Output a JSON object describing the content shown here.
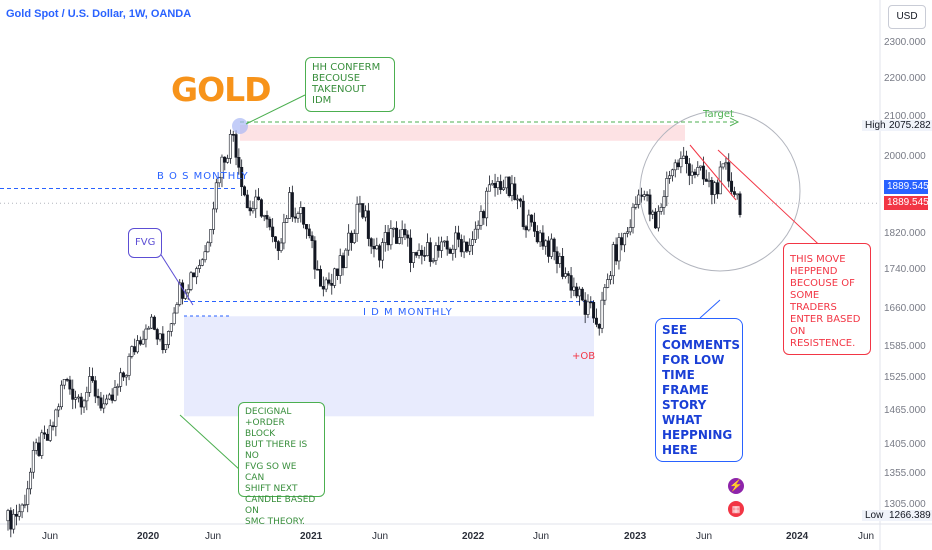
{
  "header": {
    "symbol_line": "Gold Spot / U.S. Dollar, 1W, OANDA"
  },
  "currency_button": "USD",
  "chart_title": "GOLD",
  "annotations": {
    "hh_conferm": "HH CONFERM\nBECOUSE\nTAKENOUT IDM",
    "fvg": "FVG",
    "bos_monthly": "B O S MONTHLY",
    "idm_monthly": "I D M MONTHLY",
    "target": "Target",
    "ob": "+OB",
    "decignal": "DECIGNAL +ORDER\nBLOCK\nBUT THERE IS NO\nFVG SO WE CAN\nSHIFT NEXT\nCANDLE BASED ON\nSMC THEORY.",
    "see_comments": "SEE\nCOMMENTS\nFOR LOW\nTIME FRAME\nSTORY\nWHAT\nHEPPNING\nHERE",
    "this_move": "THIS MOVE\nHEPPEND\nBECOUSE OF\nSOME TRADERS\nENTER BASED\nON\nRESISTENCE."
  },
  "price_axis": {
    "ticks": [
      "2300.000",
      "2200.000",
      "2100.000",
      "2000.000",
      "1820.000",
      "1740.000",
      "1660.000",
      "1585.000",
      "1525.000",
      "1465.000",
      "1405.000",
      "1355.000",
      "1305.000"
    ],
    "high_label": "High",
    "high_value": "2075.282",
    "low_label": "Low",
    "low_value": "1266.389",
    "last_price_blue": "1889.545",
    "last_price_red": "1889.545"
  },
  "date_axis": [
    {
      "label": "Jun",
      "year": false
    },
    {
      "label": "2020",
      "year": true
    },
    {
      "label": "Jun",
      "year": false
    },
    {
      "label": "2021",
      "year": true
    },
    {
      "label": "Jun",
      "year": false
    },
    {
      "label": "2022",
      "year": true
    },
    {
      "label": "Jun",
      "year": false
    },
    {
      "label": "2023",
      "year": true
    },
    {
      "label": "Jun",
      "year": false
    },
    {
      "label": "2024",
      "year": true
    },
    {
      "label": "Jun",
      "year": false
    }
  ],
  "icons": {
    "lightning": "lightning-icon",
    "flag": "us-flag-icon"
  },
  "colors": {
    "up": "#089981",
    "down": "#f23645",
    "candle": "#131722",
    "accent": "#2962ff",
    "gold": "#f7931a"
  },
  "chart_data": {
    "type": "candlestick",
    "title": "Gold Spot / U.S. Dollar, 1W, OANDA",
    "x_range": [
      "2019-04",
      "2024-06"
    ],
    "y_range": [
      1250,
      2350
    ],
    "ylabel": "USD",
    "high": 2075.282,
    "low": 1266.389,
    "last": 1889.545,
    "levels": {
      "bos_monthly": 1924,
      "idm_monthly": 1675,
      "target": 2080,
      "order_block_top": 1645,
      "order_block_bottom": 1455
    },
    "weekly_closes": [
      {
        "date": "2019-04",
        "close": 1280
      },
      {
        "date": "2019-05",
        "close": 1300
      },
      {
        "date": "2019-06",
        "close": 1395
      },
      {
        "date": "2019-07",
        "close": 1420
      },
      {
        "date": "2019-08",
        "close": 1520
      },
      {
        "date": "2019-09",
        "close": 1490
      },
      {
        "date": "2019-10",
        "close": 1510
      },
      {
        "date": "2019-11",
        "close": 1465
      },
      {
        "date": "2019-12",
        "close": 1515
      },
      {
        "date": "2020-01",
        "close": 1585
      },
      {
        "date": "2020-02",
        "close": 1640
      },
      {
        "date": "2020-03",
        "close": 1580
      },
      {
        "date": "2020-04",
        "close": 1690
      },
      {
        "date": "2020-05",
        "close": 1730
      },
      {
        "date": "2020-06",
        "close": 1780
      },
      {
        "date": "2020-07",
        "close": 1970
      },
      {
        "date": "2020-08",
        "close": 2060
      },
      {
        "date": "2020-09",
        "close": 1880
      },
      {
        "date": "2020-10",
        "close": 1880
      },
      {
        "date": "2020-11",
        "close": 1780
      },
      {
        "date": "2020-12",
        "close": 1890
      },
      {
        "date": "2021-01",
        "close": 1850
      },
      {
        "date": "2021-02",
        "close": 1735
      },
      {
        "date": "2021-03",
        "close": 1710
      },
      {
        "date": "2021-04",
        "close": 1770
      },
      {
        "date": "2021-05",
        "close": 1900
      },
      {
        "date": "2021-06",
        "close": 1770
      },
      {
        "date": "2021-07",
        "close": 1815
      },
      {
        "date": "2021-08",
        "close": 1815
      },
      {
        "date": "2021-09",
        "close": 1755
      },
      {
        "date": "2021-10",
        "close": 1785
      },
      {
        "date": "2021-11",
        "close": 1780
      },
      {
        "date": "2021-12",
        "close": 1805
      },
      {
        "date": "2022-01",
        "close": 1795
      },
      {
        "date": "2022-02",
        "close": 1905
      },
      {
        "date": "2022-03",
        "close": 1940
      },
      {
        "date": "2022-04",
        "close": 1900
      },
      {
        "date": "2022-05",
        "close": 1840
      },
      {
        "date": "2022-06",
        "close": 1810
      },
      {
        "date": "2022-07",
        "close": 1765
      },
      {
        "date": "2022-08",
        "close": 1715
      },
      {
        "date": "2022-09",
        "close": 1660
      },
      {
        "date": "2022-10",
        "close": 1635
      },
      {
        "date": "2022-11",
        "close": 1770
      },
      {
        "date": "2022-12",
        "close": 1825
      },
      {
        "date": "2023-01",
        "close": 1930
      },
      {
        "date": "2023-02",
        "close": 1830
      },
      {
        "date": "2023-03",
        "close": 1970
      },
      {
        "date": "2023-04",
        "close": 1990
      },
      {
        "date": "2023-05",
        "close": 1960
      },
      {
        "date": "2023-06",
        "close": 1920
      },
      {
        "date": "2023-07",
        "close": 1965
      },
      {
        "date": "2023-08",
        "close": 1890
      }
    ]
  }
}
